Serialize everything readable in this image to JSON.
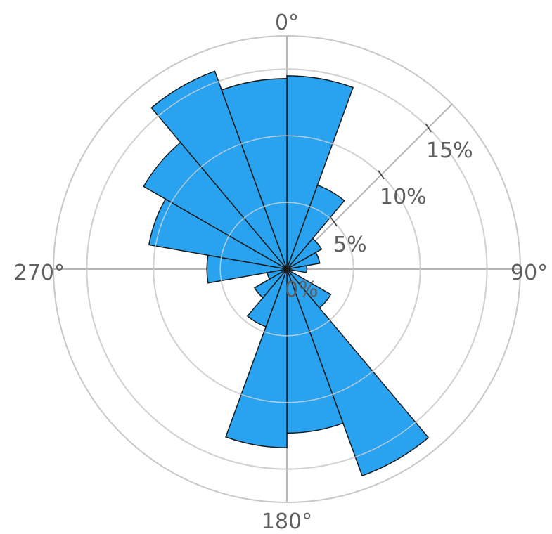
{
  "chart_data": {
    "type": "rose",
    "title": "",
    "angle_unit": "degrees",
    "direction_labels": [
      "0°",
      "90°",
      "180°",
      "270°"
    ],
    "radial_ticks": [
      {
        "value": 0,
        "label": "0%"
      },
      {
        "value": 5,
        "label": "5%"
      },
      {
        "value": 10,
        "label": "10%"
      },
      {
        "value": 15,
        "label": "15%"
      }
    ],
    "radial_max": 17.5,
    "grid": true,
    "colors": {
      "bar": "#29a3ef",
      "bar_edge": "#1a1a1a",
      "grid": "#c8c8c8",
      "inner_grid": "#d6d6d6",
      "axis": "#b5b5b5",
      "label": "#5f5f5f"
    },
    "series": [
      {
        "values": [
          {
            "from": 0,
            "to": 20,
            "value": 14.5
          },
          {
            "from": 20,
            "to": 40,
            "value": 6.7
          },
          {
            "from": 40,
            "to": 60,
            "value": 3.0
          },
          {
            "from": 60,
            "to": 80,
            "value": 2.5
          },
          {
            "from": 80,
            "to": 100,
            "value": 1.5
          },
          {
            "from": 100,
            "to": 120,
            "value": 0.3
          },
          {
            "from": 120,
            "to": 140,
            "value": 3.8
          },
          {
            "from": 140,
            "to": 160,
            "value": 16.5
          },
          {
            "from": 160,
            "to": 180,
            "value": 12.3
          },
          {
            "from": 180,
            "to": 200,
            "value": 13.4
          },
          {
            "from": 200,
            "to": 220,
            "value": 4.6
          },
          {
            "from": 220,
            "to": 240,
            "value": 2.8
          },
          {
            "from": 240,
            "to": 260,
            "value": 1.5
          },
          {
            "from": 260,
            "to": 280,
            "value": 6.0
          },
          {
            "from": 280,
            "to": 300,
            "value": 10.5
          },
          {
            "from": 300,
            "to": 320,
            "value": 12.4
          },
          {
            "from": 320,
            "to": 340,
            "value": 15.8
          },
          {
            "from": 340,
            "to": 360,
            "value": 14.3
          }
        ]
      }
    ]
  }
}
